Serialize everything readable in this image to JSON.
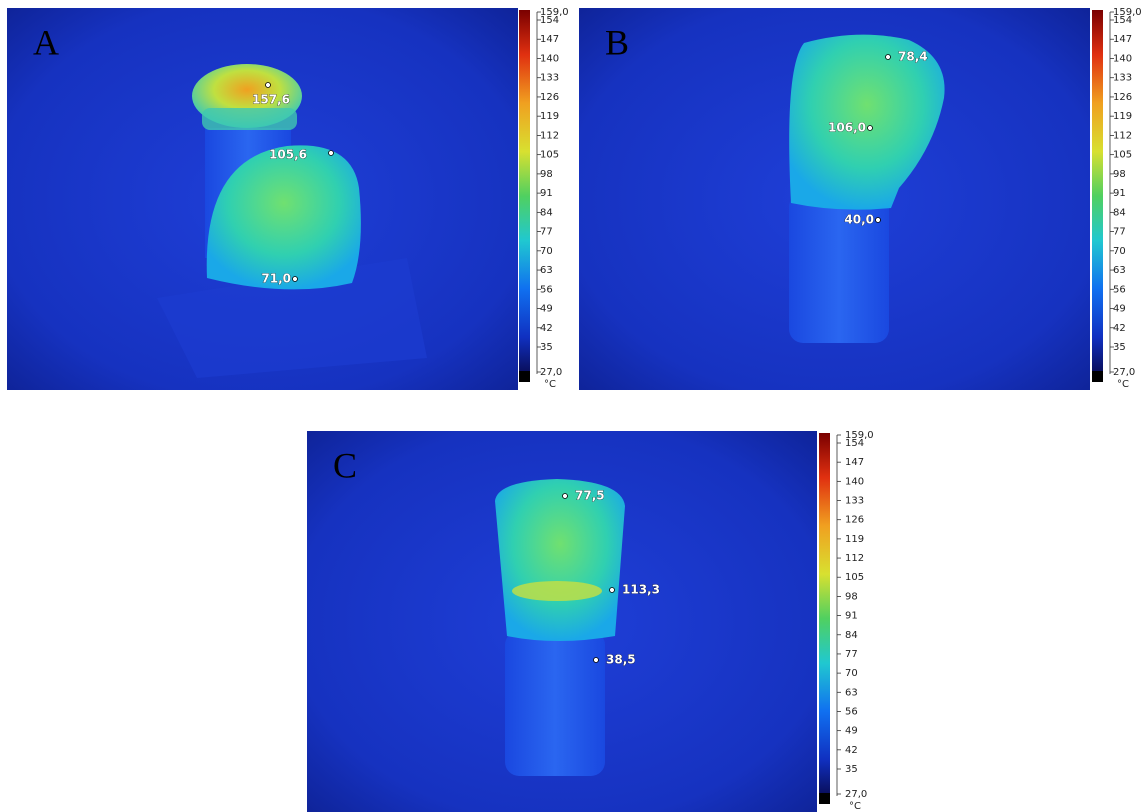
{
  "panels": [
    {
      "label": "A",
      "readings": [
        "157,6",
        "105,6",
        "71,0"
      ]
    },
    {
      "label": "B",
      "readings": [
        "78,4",
        "106,0",
        "40,0"
      ]
    },
    {
      "label": "C",
      "readings": [
        "77,5",
        "113,3",
        "38,5"
      ]
    }
  ],
  "colorbar": {
    "ticks": [
      "159,0",
      "154",
      "147",
      "140",
      "133",
      "126",
      "119",
      "112",
      "105",
      "98",
      "91",
      "84",
      "77",
      "70",
      "63",
      "56",
      "49",
      "42",
      "35",
      "27,0"
    ],
    "unit": "°C"
  }
}
